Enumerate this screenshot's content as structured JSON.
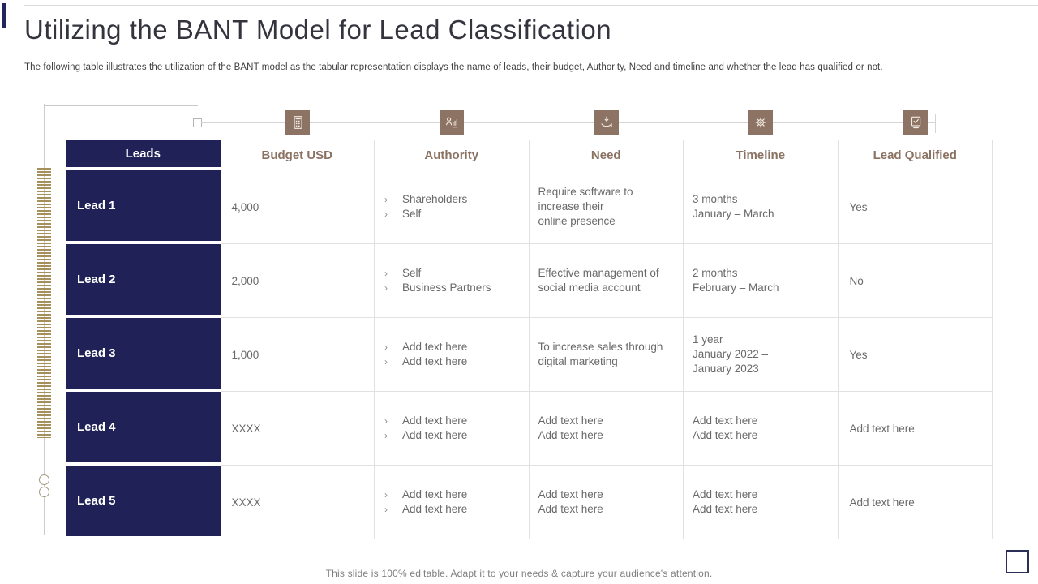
{
  "slide": {
    "title": "Utilizing the BANT Model for Lead Classification",
    "subtitle": "The following table illustrates the utilization of the BANT model as the tabular representation displays the name of leads, their budget, Authority,  Need and timeline and whether the lead has qualified or not.",
    "footer": "This slide is 100% editable. Adapt it to your needs & capture your audience's attention."
  },
  "icons": {
    "budget": "budget-calculator-icon",
    "authority": "authority-person-chart-icon",
    "need": "need-hand-arrow-icon",
    "timeline": "timeline-gear-icon",
    "qualified": "lead-qualified-document-check-icon"
  },
  "colors": {
    "navy": "#202257",
    "icon_brown": "#8d7363",
    "header_text": "#8a7263",
    "body_text": "#696969",
    "ladder_tan": "#a5905c",
    "border_gray": "#e1e1e1"
  },
  "table": {
    "bullet_char": "›",
    "headers": [
      "Leads",
      "Budget USD",
      "Authority",
      "Need",
      "Timeline",
      "Lead Qualified"
    ],
    "rows": [
      {
        "lead": "Lead 1",
        "budget": "4,000",
        "authority": [
          "Shareholders",
          "Self"
        ],
        "need_lines": [
          "Require software to",
          "increase their",
          "online presence"
        ],
        "timeline_lines": [
          "3 months",
          "January – March"
        ],
        "qualified": "Yes"
      },
      {
        "lead": "Lead 2",
        "budget": "2,000",
        "authority": [
          "Self",
          "Business Partners"
        ],
        "need_lines": [
          "Effective management of",
          "social media account"
        ],
        "timeline_lines": [
          "2 months",
          "February – March"
        ],
        "qualified": "No"
      },
      {
        "lead": "Lead 3",
        "budget": "1,000",
        "authority": [
          "Add text here",
          "Add text here"
        ],
        "need_lines": [
          "To increase sales through",
          "digital marketing"
        ],
        "timeline_lines": [
          "1 year",
          "January 2022 –",
          "January 2023"
        ],
        "qualified": "Yes"
      },
      {
        "lead": "Lead 4",
        "budget": "XXXX",
        "authority": [
          "Add text here",
          "Add text here"
        ],
        "need_lines": [
          "Add text here",
          "Add text here"
        ],
        "timeline_lines": [
          "Add text here",
          "Add text here"
        ],
        "qualified": "Add text here"
      },
      {
        "lead": "Lead 5",
        "budget": "XXXX",
        "authority": [
          "Add text here",
          "Add text here"
        ],
        "need_lines": [
          "Add text here",
          "Add text here"
        ],
        "timeline_lines": [
          "Add text here",
          "Add text here"
        ],
        "qualified": "Add text here"
      }
    ]
  }
}
